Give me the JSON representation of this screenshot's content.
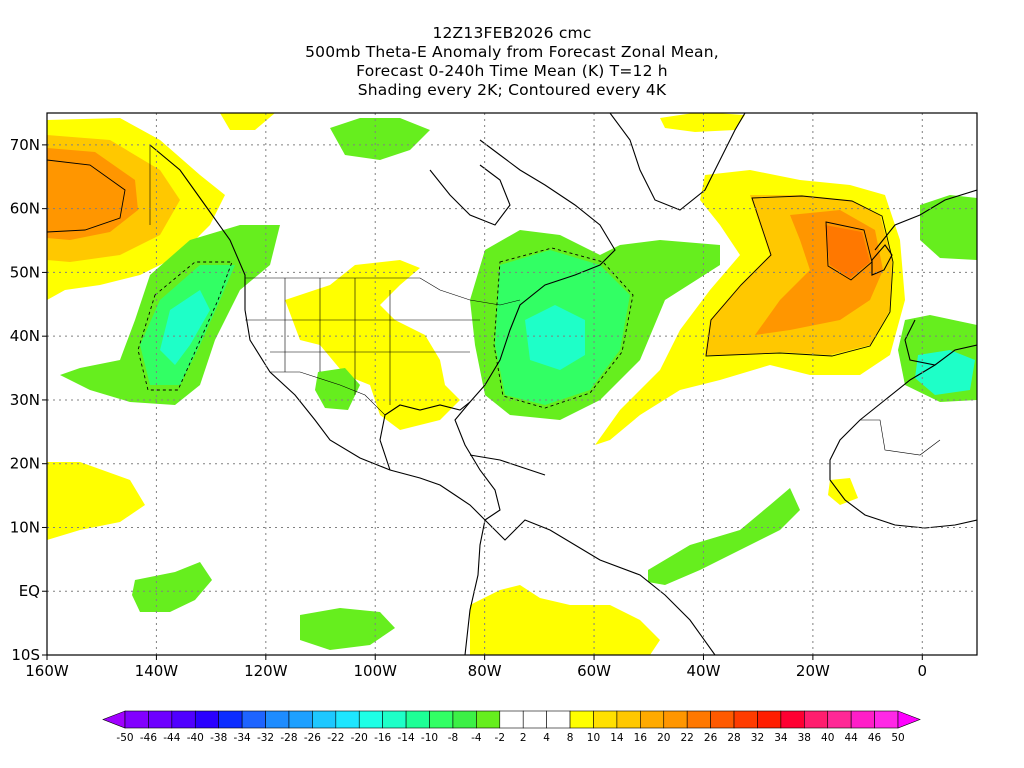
{
  "header": {
    "line1": "12Z13FEB2026 cmc",
    "line2": "500mb Theta-E Anomaly from Forecast Zonal Mean,",
    "line3": "Forecast 0-240h Time Mean (K) T=12 h",
    "line4": "Shading every 2K; Contoured every 4K"
  },
  "map": {
    "lon_range": [
      -160,
      10
    ],
    "lat_range": [
      -10,
      75
    ],
    "lon_ticks": [
      "160W",
      "140W",
      "120W",
      "100W",
      "80W",
      "60W",
      "40W",
      "20W",
      "0"
    ],
    "lat_ticks": [
      "70N",
      "60N",
      "50N",
      "40N",
      "30N",
      "20N",
      "10N",
      "EQ",
      "10S"
    ],
    "grid": "dotted"
  },
  "colorbar": {
    "labels": [
      "-50",
      "-46",
      "-44",
      "-40",
      "-38",
      "-34",
      "-32",
      "-28",
      "-26",
      "-22",
      "-20",
      "-16",
      "-14",
      "-10",
      "-8",
      "-4",
      "-2",
      "2",
      "4",
      "8",
      "10",
      "14",
      "16",
      "20",
      "22",
      "26",
      "28",
      "32",
      "34",
      "38",
      "40",
      "44",
      "46",
      "50"
    ],
    "colors": [
      "#a000ff",
      "#8200ff",
      "#6e00ff",
      "#5000ff",
      "#2a00ff",
      "#0c2cff",
      "#1e64ff",
      "#1e8cff",
      "#1ea0ff",
      "#1ec8ff",
      "#1ee6ff",
      "#1effe6",
      "#1effc8",
      "#1eff96",
      "#32ff64",
      "#3cf046",
      "#66ee1e",
      "#ffffff",
      "#ffffff",
      "#ffffff",
      "#ffff00",
      "#ffe000",
      "#ffc800",
      "#ffaa00",
      "#ff9600",
      "#ff7800",
      "#ff5a00",
      "#ff3c00",
      "#ff1e00",
      "#ff0032",
      "#ff1e6e",
      "#ff2896",
      "#ff1ec8",
      "#ff28e6",
      "#ff00ff"
    ]
  },
  "legend_colors": {
    "positive_anomaly": "#ffff00",
    "strong_positive": "#ff9600",
    "negative_anomaly": "#66ee1e",
    "strong_negative": "#1effc8"
  }
}
